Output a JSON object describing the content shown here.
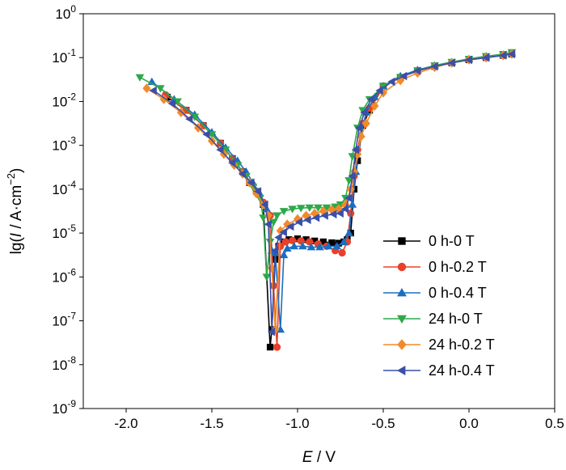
{
  "chart_data": {
    "type": "line",
    "title": "",
    "xlabel": {
      "italic": "E",
      "rest": " / V"
    },
    "ylabel": {
      "prefix": "lg(",
      "italic": "I",
      "rest": " / A·cm",
      "sup": "−2",
      "suffix": ")"
    },
    "xlim": [
      -2.25,
      0.5
    ],
    "ylim_log10": [
      -9,
      0
    ],
    "y_scale": "log",
    "x_ticks": [
      -2.0,
      -1.5,
      -1.0,
      -0.5,
      0.0,
      0.5
    ],
    "x_tick_labels": [
      "-2.0",
      "-1.5",
      "-1.0",
      "-0.5",
      "0.0",
      "0.5"
    ],
    "y_ticks_log10": [
      -9,
      -8,
      -7,
      -6,
      -5,
      -4,
      -3,
      -2,
      -1,
      0
    ],
    "y_tick_base": "10",
    "y_tick_exponents": [
      "-9",
      "-8",
      "-7",
      "-6",
      "-5",
      "-4",
      "-3",
      "-2",
      "-1",
      "0"
    ],
    "grid": false,
    "legend_position": "bottom-right",
    "series": [
      {
        "name": "0 h-0 T",
        "color": "#000000",
        "marker": "square",
        "x": [
          -1.76,
          -1.65,
          -1.55,
          -1.45,
          -1.38,
          -1.32,
          -1.28,
          -1.24,
          -1.2,
          -1.16,
          -1.15,
          -1.13,
          -1.11,
          -1.08,
          -1.05,
          -1.0,
          -0.95,
          -0.9,
          -0.85,
          -0.8,
          -0.76,
          -0.73,
          -0.71,
          -0.69,
          -0.67,
          -0.65,
          -0.62,
          -0.58,
          -0.5,
          -0.4,
          -0.3,
          -0.2,
          -0.1,
          0.0,
          0.1,
          0.2,
          0.25
        ],
        "log_y": [
          -1.9,
          -2.2,
          -2.55,
          -2.95,
          -3.3,
          -3.6,
          -3.85,
          -4.05,
          -4.35,
          -7.6,
          -7.2,
          -5.6,
          -5.3,
          -5.2,
          -5.15,
          -5.13,
          -5.15,
          -5.18,
          -5.2,
          -5.22,
          -5.23,
          -5.2,
          -5.15,
          -5.0,
          -4.0,
          -3.35,
          -2.55,
          -2.2,
          -1.65,
          -1.45,
          -1.3,
          -1.2,
          -1.12,
          -1.05,
          -1.0,
          -0.95,
          -0.92
        ]
      },
      {
        "name": "0 h-0.2 T",
        "color": "#e8402a",
        "marker": "circle",
        "x": [
          -1.77,
          -1.65,
          -1.55,
          -1.45,
          -1.38,
          -1.32,
          -1.28,
          -1.24,
          -1.2,
          -1.16,
          -1.14,
          -1.12,
          -1.1,
          -1.07,
          -1.03,
          -0.98,
          -0.93,
          -0.88,
          -0.83,
          -0.78,
          -0.74,
          -0.71,
          -0.69,
          -0.67,
          -0.65,
          -0.62,
          -0.58,
          -0.5,
          -0.4,
          -0.3,
          -0.2,
          -0.1,
          0.0,
          0.1,
          0.2,
          0.25
        ],
        "log_y": [
          -1.85,
          -2.2,
          -2.55,
          -2.95,
          -3.3,
          -3.6,
          -3.85,
          -4.05,
          -4.3,
          -4.6,
          -6.2,
          -7.6,
          -5.3,
          -5.2,
          -5.17,
          -5.18,
          -5.2,
          -5.25,
          -5.3,
          -5.4,
          -5.45,
          -5.2,
          -4.55,
          -3.7,
          -3.1,
          -2.5,
          -2.15,
          -1.65,
          -1.45,
          -1.3,
          -1.2,
          -1.12,
          -1.05,
          -1.0,
          -0.95,
          -0.92
        ]
      },
      {
        "name": "0 h-0.4 T",
        "color": "#1a6fc0",
        "marker": "triangle-up",
        "x": [
          -1.85,
          -1.72,
          -1.6,
          -1.5,
          -1.42,
          -1.35,
          -1.3,
          -1.26,
          -1.22,
          -1.18,
          -1.15,
          -1.13,
          -1.1,
          -1.08,
          -1.06,
          -1.02,
          -0.97,
          -0.92,
          -0.87,
          -0.82,
          -0.77,
          -0.73,
          -0.7,
          -0.68,
          -0.66,
          -0.63,
          -0.6,
          -0.55,
          -0.5,
          -0.4,
          -0.3,
          -0.2,
          -0.1,
          0.0,
          0.1,
          0.2,
          0.25
        ],
        "log_y": [
          -1.55,
          -1.95,
          -2.3,
          -2.7,
          -3.05,
          -3.35,
          -3.6,
          -3.85,
          -4.1,
          -4.45,
          -5.4,
          -5.45,
          -7.2,
          -5.5,
          -5.35,
          -5.3,
          -5.3,
          -5.32,
          -5.32,
          -5.3,
          -5.3,
          -5.2,
          -5.0,
          -4.35,
          -3.6,
          -2.75,
          -2.25,
          -1.9,
          -1.65,
          -1.42,
          -1.28,
          -1.18,
          -1.1,
          -1.03,
          -0.97,
          -0.93,
          -0.9
        ]
      },
      {
        "name": "24 h-0 T",
        "color": "#2ea84a",
        "marker": "triangle-down",
        "x": [
          -1.92,
          -1.8,
          -1.7,
          -1.6,
          -1.5,
          -1.42,
          -1.35,
          -1.3,
          -1.26,
          -1.22,
          -1.2,
          -1.18,
          -1.16,
          -1.14,
          -1.12,
          -1.08,
          -1.03,
          -0.98,
          -0.93,
          -0.88,
          -0.83,
          -0.78,
          -0.75,
          -0.72,
          -0.7,
          -0.68,
          -0.65,
          -0.62,
          -0.58,
          -0.5,
          -0.4,
          -0.3,
          -0.2,
          -0.1,
          0.0,
          0.1,
          0.2,
          0.25
        ],
        "log_y": [
          -1.45,
          -1.7,
          -2.0,
          -2.35,
          -2.75,
          -3.1,
          -3.45,
          -3.7,
          -3.95,
          -4.2,
          -4.65,
          -6.0,
          -5.2,
          -4.75,
          -4.6,
          -4.5,
          -4.45,
          -4.43,
          -4.42,
          -4.42,
          -4.42,
          -4.4,
          -4.35,
          -4.2,
          -3.8,
          -3.25,
          -2.6,
          -2.2,
          -1.95,
          -1.65,
          -1.45,
          -1.3,
          -1.18,
          -1.1,
          -1.03,
          -0.97,
          -0.92,
          -0.88
        ]
      },
      {
        "name": "24 h-0.2 T",
        "color": "#f28a2a",
        "marker": "diamond",
        "x": [
          -1.88,
          -1.78,
          -1.68,
          -1.58,
          -1.5,
          -1.43,
          -1.37,
          -1.32,
          -1.28,
          -1.24,
          -1.2,
          -1.17,
          -1.15,
          -1.13,
          -1.1,
          -1.06,
          -1.0,
          -0.95,
          -0.9,
          -0.85,
          -0.8,
          -0.76,
          -0.72,
          -0.69,
          -0.67,
          -0.65,
          -0.63,
          -0.6,
          -0.55,
          -0.5,
          -0.4,
          -0.3,
          -0.2,
          -0.1,
          0.0,
          0.1,
          0.2,
          0.25
        ],
        "log_y": [
          -1.7,
          -1.95,
          -2.25,
          -2.6,
          -2.9,
          -3.2,
          -3.45,
          -3.65,
          -3.85,
          -4.1,
          -4.35,
          -4.6,
          -5.8,
          -7.2,
          -4.95,
          -4.8,
          -4.68,
          -4.6,
          -4.55,
          -4.5,
          -4.47,
          -4.45,
          -4.35,
          -4.0,
          -3.6,
          -3.2,
          -2.8,
          -2.5,
          -2.1,
          -1.8,
          -1.52,
          -1.35,
          -1.22,
          -1.12,
          -1.05,
          -1.0,
          -0.95,
          -0.92
        ]
      },
      {
        "name": "24 h-0.4 T",
        "color": "#3a4fa8",
        "marker": "triangle-left",
        "x": [
          -1.84,
          -1.73,
          -1.63,
          -1.53,
          -1.45,
          -1.38,
          -1.32,
          -1.27,
          -1.23,
          -1.19,
          -1.17,
          -1.15,
          -1.13,
          -1.11,
          -1.08,
          -1.04,
          -0.99,
          -0.94,
          -0.89,
          -0.84,
          -0.79,
          -0.75,
          -0.72,
          -0.7,
          -0.68,
          -0.66,
          -0.64,
          -0.61,
          -0.57,
          -0.52,
          -0.45,
          -0.38,
          -0.3,
          -0.2,
          -0.1,
          0.0,
          0.1,
          0.2,
          0.25
        ],
        "log_y": [
          -1.75,
          -2.05,
          -2.4,
          -2.75,
          -3.1,
          -3.4,
          -3.65,
          -3.85,
          -4.05,
          -4.35,
          -4.8,
          -7.25,
          -5.4,
          -5.1,
          -4.98,
          -4.85,
          -4.75,
          -4.7,
          -4.65,
          -4.6,
          -4.57,
          -4.55,
          -4.45,
          -4.2,
          -3.7,
          -3.1,
          -2.6,
          -2.25,
          -1.95,
          -1.75,
          -1.55,
          -1.42,
          -1.3,
          -1.2,
          -1.12,
          -1.05,
          -1.0,
          -0.95,
          -0.92
        ]
      }
    ]
  }
}
